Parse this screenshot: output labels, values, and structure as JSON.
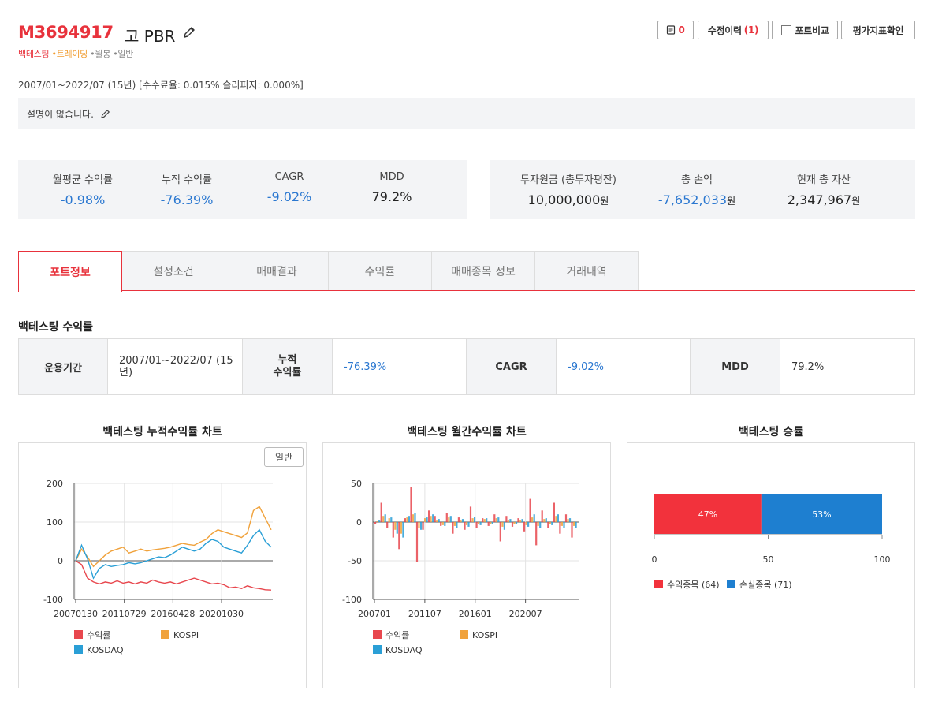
{
  "header": {
    "code": "M3694917",
    "name": "고 PBR",
    "tags": [
      "백테스팅",
      "트레이딩",
      "월봉",
      "일반"
    ],
    "buttons": {
      "comment_count": "0",
      "history_label": "수정이력",
      "history_count": "(1)",
      "compare_label": "포트비교",
      "metrics_label": "평가지표확인"
    }
  },
  "period_text": "2007/01~2022/07 (15년) [수수료율: 0.015% 슬리피지: 0.000%]",
  "description": "설명이 없습니다.",
  "stats_left": [
    {
      "label": "월평균 수익률",
      "value": "-0.98%"
    },
    {
      "label": "누적 수익률",
      "value": "-76.39%"
    },
    {
      "label": "CAGR",
      "value": "-9.02%"
    },
    {
      "label": "MDD",
      "value": "79.2%"
    }
  ],
  "stats_right": [
    {
      "label": "투자원금 (총투자평잔)",
      "value": "10,000,000",
      "unit": "원"
    },
    {
      "label": "총 손익",
      "value": "-7,652,033",
      "unit": "원"
    },
    {
      "label": "현재 총 자산",
      "value": "2,347,967",
      "unit": "원"
    }
  ],
  "tabs": [
    "포트정보",
    "설정조건",
    "매매결과",
    "수익률",
    "매매종목 정보",
    "거래내역"
  ],
  "section_title": "백테스팅 수익률",
  "summary": {
    "period_label": "운용기간",
    "period_value": "2007/01~2022/07 (15년)",
    "cum_label": "누적\n수익률",
    "cum_value": "-76.39%",
    "cagr_label": "CAGR",
    "cagr_value": "-9.02%",
    "mdd_label": "MDD",
    "mdd_value": "79.2%"
  },
  "charts_titles": {
    "cumulative": "백테스팅 누적수익률 차트",
    "monthly": "백테스팅 월간수익률 차트",
    "winrate": "백테스팅 승률"
  },
  "cumulative_toggle": "일반",
  "colors": {
    "accent": "#e8323c",
    "returns": "#e8474e",
    "kospi": "#f0a23c",
    "kosdaq": "#2a9fd6",
    "win": "#f2323c",
    "loss": "#1e7fd0",
    "blue_value": "#2a77d0"
  },
  "chart_data": [
    {
      "type": "line",
      "title": "백테스팅 누적수익률 차트",
      "x_ticks": [
        "20070130",
        "20110729",
        "20160428",
        "20201030"
      ],
      "y_ticks": [
        "200",
        "100",
        "0",
        "-100"
      ],
      "ylim": [
        -100,
        200
      ],
      "legend": [
        "수익률",
        "KOSPI",
        "KOSDAQ"
      ],
      "series": [
        {
          "name": "수익률",
          "values": [
            0,
            -10,
            -45,
            -55,
            -60,
            -55,
            -58,
            -52,
            -58,
            -55,
            -60,
            -55,
            -58,
            -50,
            -55,
            -58,
            -55,
            -60,
            -55,
            -50,
            -45,
            -50,
            -55,
            -60,
            -58,
            -62,
            -70,
            -68,
            -72,
            -65,
            -70,
            -72,
            -75,
            -76
          ]
        },
        {
          "name": "KOSPI",
          "values": [
            0,
            30,
            10,
            -15,
            0,
            15,
            25,
            30,
            35,
            20,
            25,
            30,
            25,
            28,
            30,
            32,
            35,
            40,
            45,
            42,
            40,
            48,
            55,
            70,
            80,
            75,
            70,
            65,
            60,
            72,
            130,
            140,
            110,
            80
          ]
        },
        {
          "name": "KOSDAQ",
          "values": [
            0,
            40,
            5,
            -45,
            -20,
            -10,
            -15,
            -12,
            -10,
            -5,
            -8,
            -5,
            0,
            5,
            10,
            8,
            15,
            25,
            35,
            30,
            25,
            30,
            45,
            55,
            50,
            35,
            30,
            25,
            20,
            40,
            65,
            80,
            50,
            35
          ]
        }
      ]
    },
    {
      "type": "bar",
      "title": "백테스팅 월간수익률 차트",
      "x_ticks": [
        "200701",
        "201107",
        "201601",
        "202007"
      ],
      "y_ticks": [
        "50",
        "0",
        "-50",
        "-100"
      ],
      "ylim": [
        -100,
        50
      ],
      "legend": [
        "수익률",
        "KOSPI",
        "KOSDAQ"
      ],
      "series": [
        {
          "name": "수익률",
          "values": [
            -3,
            25,
            -8,
            -20,
            -35,
            5,
            45,
            -52,
            -10,
            15,
            8,
            -5,
            12,
            -15,
            6,
            -10,
            20,
            -8,
            5,
            -5,
            10,
            -25,
            8,
            -6,
            5,
            -12,
            30,
            -30,
            15,
            -8,
            25,
            -15,
            10,
            -20
          ]
        },
        {
          "name": "KOSPI",
          "values": [
            2,
            8,
            5,
            -10,
            -15,
            6,
            10,
            -8,
            5,
            8,
            3,
            -4,
            6,
            -5,
            3,
            -4,
            5,
            -3,
            4,
            -2,
            5,
            -6,
            3,
            -2,
            3,
            -4,
            6,
            -5,
            4,
            -3,
            8,
            -5,
            4,
            -5
          ]
        },
        {
          "name": "KOSDAQ",
          "values": [
            3,
            10,
            6,
            -15,
            -20,
            8,
            12,
            -10,
            6,
            10,
            4,
            -5,
            8,
            -8,
            4,
            -6,
            7,
            -4,
            5,
            -3,
            6,
            -10,
            4,
            -3,
            4,
            -6,
            10,
            -8,
            5,
            -4,
            10,
            -8,
            5,
            -8
          ]
        }
      ]
    },
    {
      "type": "bar",
      "title": "백테스팅 승률",
      "x_ticks": [
        "0",
        "50",
        "100"
      ],
      "xlim": [
        0,
        100
      ],
      "series": [
        {
          "name": "수익종목 (64)",
          "value": 47,
          "label": "47%"
        },
        {
          "name": "손실종목 (71)",
          "value": 53,
          "label": "53%"
        }
      ]
    }
  ]
}
